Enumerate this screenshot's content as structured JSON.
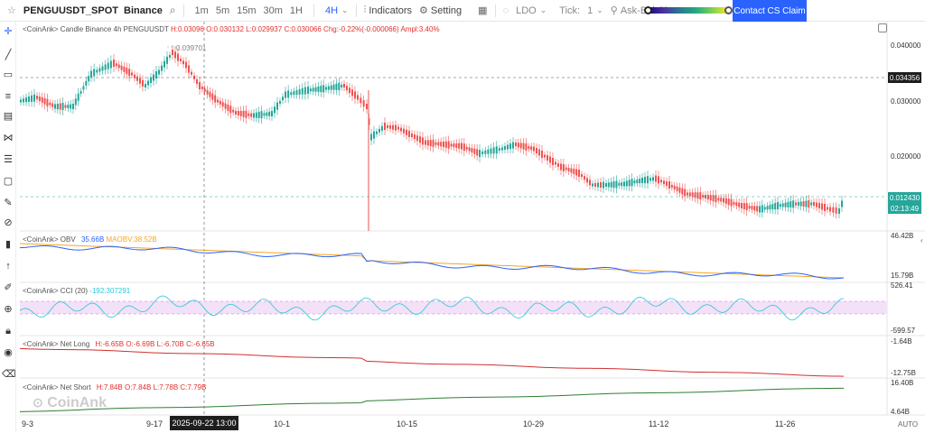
{
  "toolbar": {
    "symbol": "PENGUUSDT_SPOT",
    "exchange": "Binance",
    "search_icon": "search-icon",
    "timeframes": [
      "1m",
      "5m",
      "15m",
      "30m",
      "1H"
    ],
    "active_timeframe": "4H",
    "chevron": "chevron-down-icon",
    "indicators_label": "Indicators",
    "setting_label": "Setting",
    "grid_icon": "grid-icon",
    "ldo_label": "LDO",
    "tick_label": "Tick:",
    "tick_value": "1",
    "cluster_label": "Ask-Bid Cluster",
    "contact_label": "Contact CS Claim"
  },
  "main_legend": {
    "prefix": "<CoinAnk> Candle  Binance 4h PENGUUSDT",
    "high": "H:0.03096",
    "open": "O:0.030132",
    "low": "L:0.029937",
    "close": "C:0.030066",
    "chg": "Chg:-0.22%(-0.000066)",
    "ampl": "Ampl:3.40%",
    "peak_label": "0.039701"
  },
  "price_axis": {
    "labels": [
      "0.040000",
      "0.030000",
      "0.020000"
    ],
    "crosshair_value": "0.034356",
    "last_price": "0.012430",
    "countdown": "02:13:49"
  },
  "obv": {
    "name": "<CoinAnk> OBV",
    "value": "35.66B",
    "ma_label": "MAOBV:38.52B",
    "top": "46.42B",
    "bottom": "15.79B"
  },
  "cci": {
    "name": "<CoinAnk> CCI",
    "period": "(20)",
    "value": "-192.307291",
    "top": "526.41",
    "bottom": "-599.57"
  },
  "net_long": {
    "name": "<CoinAnk> Net Long",
    "h": "H:-6.65B",
    "o": "O:-6.69B",
    "l": "L:-6.70B",
    "c": "C:-6.65B",
    "top": "-1.64B",
    "bottom": "-12.75B"
  },
  "net_short": {
    "name": "<CoinAnk> Net Short",
    "h": "H:7.84B",
    "o": "O:7.84B",
    "l": "L:7.78B",
    "c": "C:7.79B",
    "top": "16.40B",
    "bottom": "4.64B"
  },
  "x_axis": {
    "dates": [
      "9-3",
      "9-17",
      "10-1",
      "10-15",
      "10-29",
      "11-12",
      "11-26"
    ],
    "crosshair_date": "2025-09-22 13:00",
    "auto_label": "AUTO"
  },
  "watermark": "CoinAnk",
  "colors": {
    "up": "#26a69a",
    "down": "#ef5350",
    "accent": "#2962ff",
    "obv": "#2962ff",
    "maobv": "#f5a623",
    "cci": "#26c6da",
    "net_long": "#d32f2f",
    "net_short": "#2e7d32",
    "last_price_tag": "#26a69a"
  }
}
